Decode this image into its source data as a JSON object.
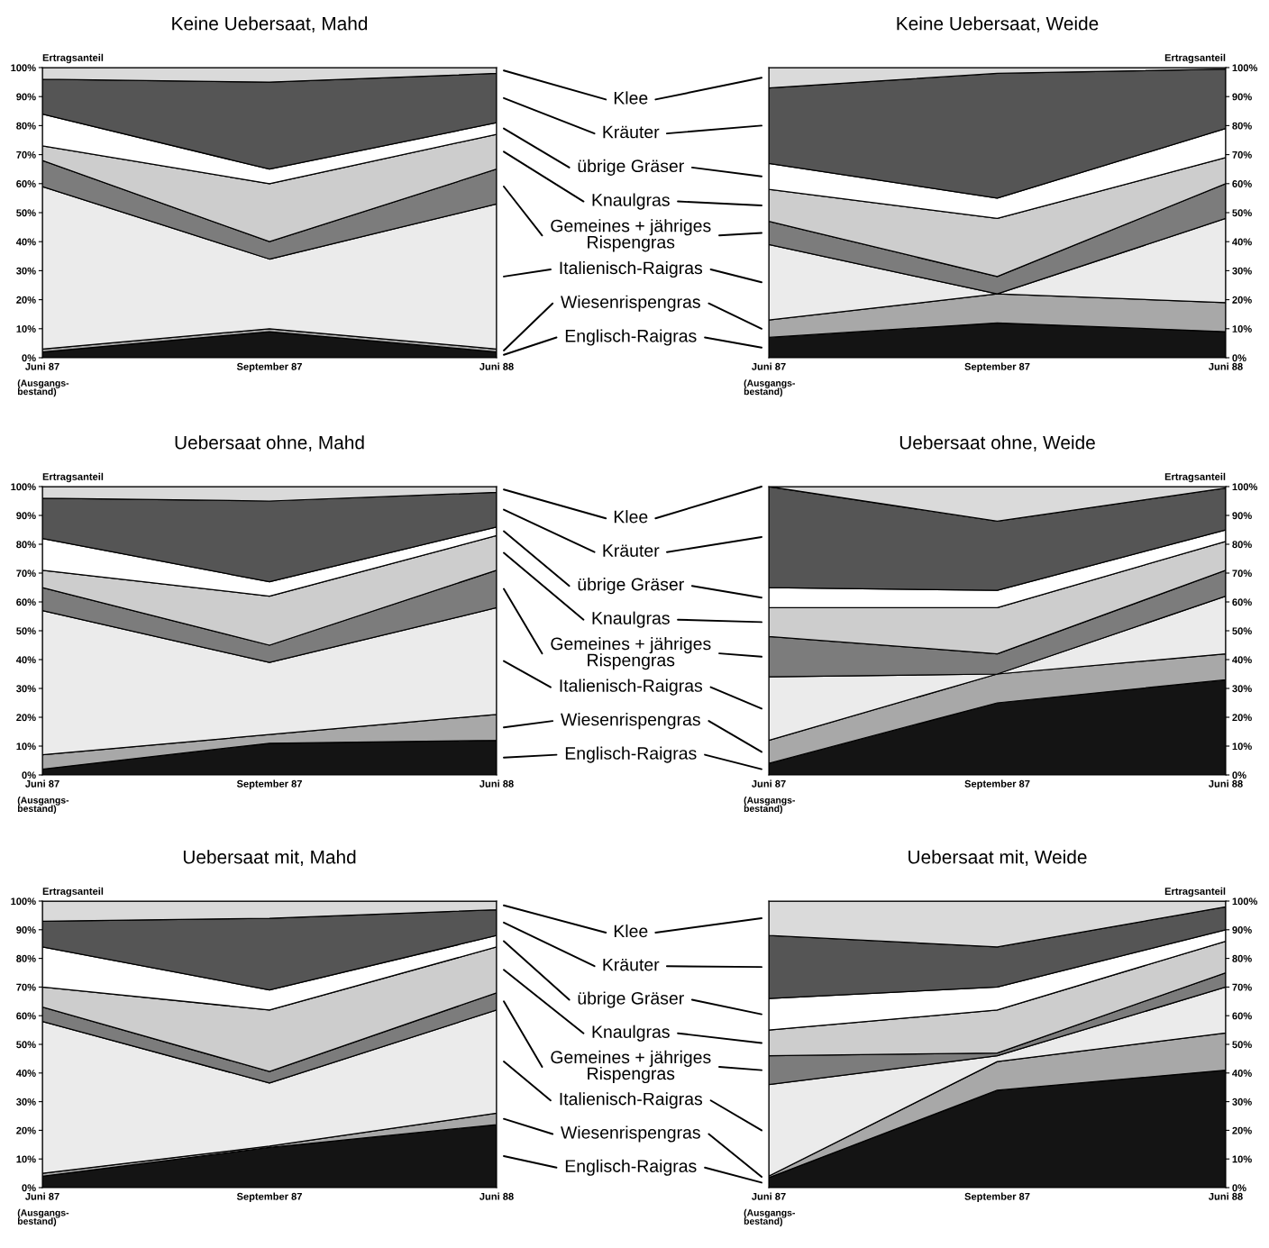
{
  "chart_data": [
    {
      "type": "area",
      "stacked": true,
      "legend": "right",
      "title": "Keine Uebersaat, Mahd",
      "ylabel": "Ertragsanteil",
      "categories": [
        "Juni 87",
        "September 87",
        "Juni 88"
      ],
      "annotations": [
        "(Ausgangs-\nbestand)"
      ],
      "ylim": [
        0,
        100
      ],
      "yticks": [
        {
          "value": 0,
          "label": "0%"
        },
        {
          "value": 10,
          "label": "10%"
        },
        {
          "value": 20,
          "label": "20%"
        },
        {
          "value": 30,
          "label": "30%"
        },
        {
          "value": 40,
          "label": "40%"
        },
        {
          "value": 50,
          "label": "50%"
        },
        {
          "value": 60,
          "label": "60%"
        },
        {
          "value": 70,
          "label": "70%"
        },
        {
          "value": 80,
          "label": "80%"
        },
        {
          "value": 90,
          "label": "90%"
        },
        {
          "value": 100,
          "label": "100%"
        }
      ],
      "series": [
        {
          "name": "Englisch-Raigras",
          "color": "#141414",
          "values": [
            2,
            9,
            2
          ]
        },
        {
          "name": "Wiesenrispengras",
          "color": "#a8a8a8",
          "values": [
            1,
            1,
            1
          ]
        },
        {
          "name": "Italienisch-Raigras",
          "color": "#ebebeb",
          "values": [
            56,
            24,
            50
          ]
        },
        {
          "name": "Gemeines + jähriges\nRispengras",
          "color": "#7c7c7c",
          "values": [
            9,
            6,
            12
          ]
        },
        {
          "name": "Knaulgras",
          "color": "#cdcdcd",
          "values": [
            5,
            20,
            12
          ]
        },
        {
          "name": "übrige Gräser",
          "color": "#ffffff",
          "values": [
            11,
            5,
            4
          ]
        },
        {
          "name": "Kräuter",
          "color": "#555555",
          "values": [
            12,
            30,
            17
          ]
        },
        {
          "name": "Klee",
          "color": "#dadada",
          "values": [
            4,
            5,
            2
          ]
        }
      ]
    },
    {
      "type": "area",
      "stacked": true,
      "title": "Keine Uebersaat, Weide",
      "y2label": "Ertragsanteil",
      "categories": [
        "Juni 87",
        "September 87",
        "Juni 88"
      ],
      "annotations": [
        "(Ausgangs-\nbestand)"
      ],
      "y2lim": [
        0,
        100
      ],
      "y2ticks": [
        {
          "value": 0,
          "label": "0%"
        },
        {
          "value": 10,
          "label": "10%"
        },
        {
          "value": 20,
          "label": "20%"
        },
        {
          "value": 30,
          "label": "30%"
        },
        {
          "value": 40,
          "label": "40%"
        },
        {
          "value": 50,
          "label": "50%"
        },
        {
          "value": 60,
          "label": "60%"
        },
        {
          "value": 70,
          "label": "70%"
        },
        {
          "value": 80,
          "label": "80%"
        },
        {
          "value": 90,
          "label": "90%"
        },
        {
          "value": 100,
          "label": "100%"
        }
      ],
      "series": [
        {
          "axis": "y2",
          "color": "#141414",
          "values": [
            7,
            12,
            9
          ]
        },
        {
          "axis": "y2",
          "color": "#a8a8a8",
          "values": [
            6,
            10,
            10
          ]
        },
        {
          "axis": "y2",
          "color": "#ebebeb",
          "values": [
            26,
            0,
            29
          ]
        },
        {
          "axis": "y2",
          "color": "#7c7c7c",
          "values": [
            8,
            6,
            12
          ]
        },
        {
          "axis": "y2",
          "color": "#cdcdcd",
          "values": [
            11,
            20,
            9
          ]
        },
        {
          "axis": "y2",
          "color": "#ffffff",
          "values": [
            9,
            7,
            10
          ]
        },
        {
          "axis": "y2",
          "color": "#555555",
          "values": [
            26,
            43,
            20.5
          ]
        },
        {
          "axis": "y2",
          "color": "#dadada",
          "values": [
            7,
            2,
            0.5
          ]
        }
      ]
    },
    {
      "type": "area",
      "stacked": true,
      "legend": "right",
      "title": "Uebersaat ohne, Mahd",
      "ylabel": "Ertragsanteil",
      "categories": [
        "Juni 87",
        "September 87",
        "Juni 88"
      ],
      "annotations": [
        "(Ausgangs-\nbestand)"
      ],
      "ylim": [
        0,
        100
      ],
      "yticks": [
        {
          "value": 0,
          "label": "0%"
        },
        {
          "value": 10,
          "label": "10%"
        },
        {
          "value": 20,
          "label": "20%"
        },
        {
          "value": 30,
          "label": "30%"
        },
        {
          "value": 40,
          "label": "40%"
        },
        {
          "value": 50,
          "label": "50%"
        },
        {
          "value": 60,
          "label": "60%"
        },
        {
          "value": 70,
          "label": "70%"
        },
        {
          "value": 80,
          "label": "80%"
        },
        {
          "value": 90,
          "label": "90%"
        },
        {
          "value": 100,
          "label": "100%"
        }
      ],
      "series": [
        {
          "name": "Englisch-Raigras",
          "color": "#141414",
          "values": [
            2,
            11,
            12
          ]
        },
        {
          "name": "Wiesenrispengras",
          "color": "#a8a8a8",
          "values": [
            5,
            3,
            9
          ]
        },
        {
          "name": "Italienisch-Raigras",
          "color": "#ebebeb",
          "values": [
            50,
            25,
            37
          ]
        },
        {
          "name": "Gemeines + jähriges\nRispengras",
          "color": "#7c7c7c",
          "values": [
            8,
            6,
            13
          ]
        },
        {
          "name": "Knaulgras",
          "color": "#cdcdcd",
          "values": [
            6,
            17,
            12
          ]
        },
        {
          "name": "übrige Gräser",
          "color": "#ffffff",
          "values": [
            11,
            5,
            3
          ]
        },
        {
          "name": "Kräuter",
          "color": "#555555",
          "values": [
            14,
            28,
            12
          ]
        },
        {
          "name": "Klee",
          "color": "#dadada",
          "values": [
            4,
            5,
            2
          ]
        }
      ]
    },
    {
      "type": "area",
      "stacked": true,
      "title": "Uebersaat ohne, Weide",
      "y2label": "Ertragsanteil",
      "categories": [
        "Juni 87",
        "September 87",
        "Juni 88"
      ],
      "annotations": [
        "(Ausgangs-\nbestand)"
      ],
      "y2lim": [
        0,
        100
      ],
      "y2ticks": [
        {
          "value": 0,
          "label": "0%"
        },
        {
          "value": 10,
          "label": "10%"
        },
        {
          "value": 20,
          "label": "20%"
        },
        {
          "value": 30,
          "label": "30%"
        },
        {
          "value": 40,
          "label": "40%"
        },
        {
          "value": 50,
          "label": "50%"
        },
        {
          "value": 60,
          "label": "60%"
        },
        {
          "value": 70,
          "label": "70%"
        },
        {
          "value": 80,
          "label": "80%"
        },
        {
          "value": 90,
          "label": "90%"
        },
        {
          "value": 100,
          "label": "100%"
        }
      ],
      "series": [
        {
          "axis": "y2",
          "color": "#141414",
          "values": [
            4,
            25,
            33
          ]
        },
        {
          "axis": "y2",
          "color": "#a8a8a8",
          "values": [
            8,
            10,
            9
          ]
        },
        {
          "axis": "y2",
          "color": "#ebebeb",
          "values": [
            22,
            0,
            20
          ]
        },
        {
          "axis": "y2",
          "color": "#7c7c7c",
          "values": [
            14,
            7,
            9
          ]
        },
        {
          "axis": "y2",
          "color": "#cdcdcd",
          "values": [
            10,
            16,
            10
          ]
        },
        {
          "axis": "y2",
          "color": "#ffffff",
          "values": [
            7,
            6,
            4
          ]
        },
        {
          "axis": "y2",
          "color": "#555555",
          "values": [
            35,
            24,
            14.5
          ]
        },
        {
          "axis": "y2",
          "color": "#dadada",
          "values": [
            0,
            12,
            0.5
          ]
        }
      ]
    },
    {
      "type": "area",
      "stacked": true,
      "legend": "right",
      "title": "Uebersaat mit, Mahd",
      "ylabel": "Ertragsanteil",
      "categories": [
        "Juni 87",
        "September 87",
        "Juni 88"
      ],
      "annotations": [
        "(Ausgangs-\nbestand)"
      ],
      "ylim": [
        0,
        100
      ],
      "yticks": [
        {
          "value": 0,
          "label": "0%"
        },
        {
          "value": 10,
          "label": "10%"
        },
        {
          "value": 20,
          "label": "20%"
        },
        {
          "value": 30,
          "label": "30%"
        },
        {
          "value": 40,
          "label": "40%"
        },
        {
          "value": 50,
          "label": "50%"
        },
        {
          "value": 60,
          "label": "60%"
        },
        {
          "value": 70,
          "label": "70%"
        },
        {
          "value": 80,
          "label": "80%"
        },
        {
          "value": 90,
          "label": "90%"
        },
        {
          "value": 100,
          "label": "100%"
        }
      ],
      "series": [
        {
          "name": "Englisch-Raigras",
          "color": "#141414",
          "values": [
            4,
            14,
            22
          ]
        },
        {
          "name": "Wiesenrispengras",
          "color": "#a8a8a8",
          "values": [
            1,
            0.5,
            4
          ]
        },
        {
          "name": "Italienisch-Raigras",
          "color": "#ebebeb",
          "values": [
            53,
            22,
            36
          ]
        },
        {
          "name": "Gemeines + jähriges\nRispengras",
          "color": "#7c7c7c",
          "values": [
            5,
            4,
            6
          ]
        },
        {
          "name": "Knaulgras",
          "color": "#cdcdcd",
          "values": [
            7,
            21.5,
            16
          ]
        },
        {
          "name": "übrige Gräser",
          "color": "#ffffff",
          "values": [
            14,
            7,
            4
          ]
        },
        {
          "name": "Kräuter",
          "color": "#555555",
          "values": [
            9,
            25,
            9
          ]
        },
        {
          "name": "Klee",
          "color": "#dadada",
          "values": [
            7,
            6,
            3
          ]
        }
      ]
    },
    {
      "type": "area",
      "stacked": true,
      "title": "Uebersaat mit, Weide",
      "y2label": "Ertragsanteil",
      "categories": [
        "Juni 87",
        "September 87",
        "Juni 88"
      ],
      "annotations": [
        "(Ausgangs-\nbestand)"
      ],
      "y2lim": [
        0,
        100
      ],
      "y2ticks": [
        {
          "value": 0,
          "label": "0%"
        },
        {
          "value": 10,
          "label": "10%"
        },
        {
          "value": 20,
          "label": "20%"
        },
        {
          "value": 30,
          "label": "30%"
        },
        {
          "value": 40,
          "label": "40%"
        },
        {
          "value": 50,
          "label": "50%"
        },
        {
          "value": 60,
          "label": "60%"
        },
        {
          "value": 70,
          "label": "70%"
        },
        {
          "value": 80,
          "label": "80%"
        },
        {
          "value": 90,
          "label": "90%"
        },
        {
          "value": 100,
          "label": "100%"
        }
      ],
      "series": [
        {
          "axis": "y2",
          "color": "#141414",
          "values": [
            3.5,
            34,
            41
          ]
        },
        {
          "axis": "y2",
          "color": "#a8a8a8",
          "values": [
            0.5,
            10,
            13
          ]
        },
        {
          "axis": "y2",
          "color": "#ebebeb",
          "values": [
            32,
            2,
            16
          ]
        },
        {
          "axis": "y2",
          "color": "#7c7c7c",
          "values": [
            10,
            1,
            5
          ]
        },
        {
          "axis": "y2",
          "color": "#cdcdcd",
          "values": [
            9,
            15,
            11
          ]
        },
        {
          "axis": "y2",
          "color": "#ffffff",
          "values": [
            11,
            8,
            4
          ]
        },
        {
          "axis": "y2",
          "color": "#555555",
          "values": [
            22,
            14,
            8
          ]
        },
        {
          "axis": "y2",
          "color": "#dadada",
          "values": [
            12,
            16,
            2
          ]
        }
      ]
    }
  ]
}
